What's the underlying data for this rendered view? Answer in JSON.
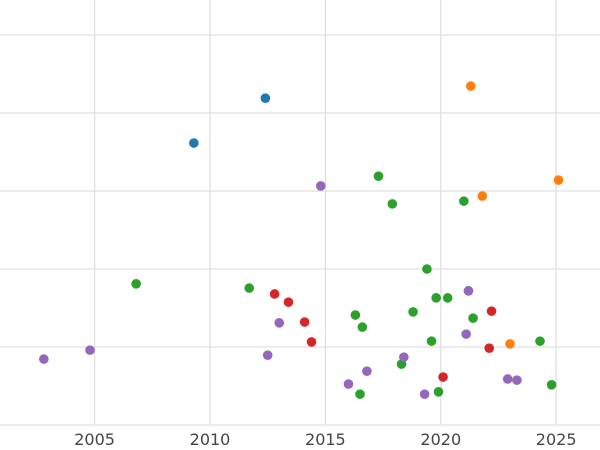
{
  "chart_data": {
    "type": "scatter",
    "title": "",
    "xlabel": "",
    "ylabel": "",
    "grid": true,
    "legend": "none",
    "x_ticks": [
      2005,
      2010,
      2015,
      2020,
      2025
    ],
    "x_range": [
      2000.9,
      2026.9
    ],
    "y_range": [
      0,
      100
    ],
    "y_gridlines": [
      0,
      20,
      40,
      60,
      80,
      100
    ],
    "y_axis_note": "y axis unlabeled; values normalized 0-100 from gridlines",
    "series": [
      {
        "name": "blue",
        "color": "#1f77b4",
        "points": [
          {
            "x": 2009.3,
            "y": 72.3
          },
          {
            "x": 2012.4,
            "y": 83.8
          }
        ]
      },
      {
        "name": "orange",
        "color": "#ff7f0e",
        "points": [
          {
            "x": 2021.3,
            "y": 86.9
          },
          {
            "x": 2021.8,
            "y": 58.7
          },
          {
            "x": 2025.1,
            "y": 62.8
          },
          {
            "x": 2023.0,
            "y": 20.8
          }
        ]
      },
      {
        "name": "green",
        "color": "#2ca02c",
        "points": [
          {
            "x": 2006.8,
            "y": 36.2
          },
          {
            "x": 2011.7,
            "y": 35.1
          },
          {
            "x": 2017.3,
            "y": 63.8
          },
          {
            "x": 2017.9,
            "y": 56.7
          },
          {
            "x": 2021.0,
            "y": 57.4
          },
          {
            "x": 2019.4,
            "y": 40.0
          },
          {
            "x": 2019.8,
            "y": 32.6
          },
          {
            "x": 2020.3,
            "y": 32.6
          },
          {
            "x": 2016.3,
            "y": 28.2
          },
          {
            "x": 2016.6,
            "y": 25.1
          },
          {
            "x": 2018.8,
            "y": 29.0
          },
          {
            "x": 2019.6,
            "y": 21.5
          },
          {
            "x": 2021.4,
            "y": 27.4
          },
          {
            "x": 2021.2,
            "y": 34.4
          },
          {
            "x": 2018.3,
            "y": 15.6
          },
          {
            "x": 2019.9,
            "y": 8.5
          },
          {
            "x": 2016.5,
            "y": 7.9
          },
          {
            "x": 2024.3,
            "y": 21.5
          },
          {
            "x": 2024.8,
            "y": 10.3
          }
        ]
      },
      {
        "name": "red",
        "color": "#d62728",
        "points": [
          {
            "x": 2012.8,
            "y": 33.6
          },
          {
            "x": 2013.4,
            "y": 31.5
          },
          {
            "x": 2014.1,
            "y": 26.4
          },
          {
            "x": 2014.4,
            "y": 21.3
          },
          {
            "x": 2022.2,
            "y": 29.2
          },
          {
            "x": 2022.1,
            "y": 19.7
          },
          {
            "x": 2020.1,
            "y": 12.3
          }
        ]
      },
      {
        "name": "purple",
        "color": "#9467bd",
        "points": [
          {
            "x": 2002.8,
            "y": 16.9
          },
          {
            "x": 2004.8,
            "y": 19.2
          },
          {
            "x": 2014.8,
            "y": 61.3
          },
          {
            "x": 2013.0,
            "y": 26.2
          },
          {
            "x": 2012.5,
            "y": 17.9
          },
          {
            "x": 2016.0,
            "y": 10.5
          },
          {
            "x": 2016.8,
            "y": 13.8
          },
          {
            "x": 2018.4,
            "y": 17.4
          },
          {
            "x": 2019.3,
            "y": 7.9
          },
          {
            "x": 2021.2,
            "y": 34.4
          },
          {
            "x": 2021.1,
            "y": 23.3
          },
          {
            "x": 2022.9,
            "y": 11.8
          },
          {
            "x": 2023.3,
            "y": 11.5
          }
        ]
      }
    ]
  }
}
